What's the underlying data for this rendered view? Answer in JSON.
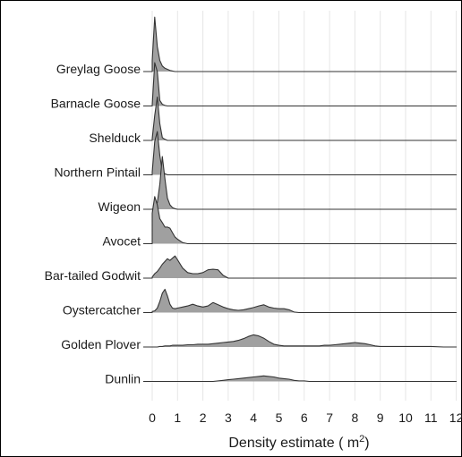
{
  "chart_data": {
    "type": "ridgeline",
    "xlabel": "Density estimate ( m²)",
    "xlabel_main": "Density estimate ( m",
    "xlabel_sup": "2",
    "xlabel_close": ")",
    "xlim": [
      -0.3,
      12
    ],
    "x_ticks": [
      0,
      1,
      2,
      3,
      4,
      5,
      6,
      7,
      8,
      9,
      10,
      11,
      12
    ],
    "grid": "vertical",
    "fill_color": "#a0a0a0",
    "line_color": "#333333",
    "grid_color": "#e6e6e6",
    "ridge_x": [
      0,
      0.1,
      0.2,
      0.3,
      0.4,
      0.5,
      0.6,
      0.7,
      0.8,
      0.9,
      1.0,
      1.2,
      1.4,
      1.6,
      1.8,
      2.0,
      2.2,
      2.4,
      2.6,
      2.8,
      3.0,
      3.2,
      3.4,
      3.6,
      3.8,
      4.0,
      4.2,
      4.4,
      4.6,
      4.8,
      5.0,
      5.2,
      5.4,
      5.6,
      5.8,
      6.0,
      6.2,
      6.4,
      6.6,
      6.8,
      7.0,
      7.2,
      7.4,
      7.6,
      7.8,
      8.0,
      8.2,
      8.4,
      8.6,
      8.8,
      9.0,
      9.5,
      10.0,
      10.5,
      11.0,
      11.5,
      12.0
    ],
    "series": [
      {
        "name": "Greylag Goose",
        "values": [
          0.2,
          0.98,
          0.45,
          0.2,
          0.1,
          0.06,
          0.04,
          0.02,
          0.01,
          0,
          0,
          0,
          0,
          0,
          0,
          0,
          0,
          0,
          0,
          0,
          0,
          0,
          0,
          0,
          0,
          0,
          0,
          0,
          0,
          0,
          0,
          0,
          0,
          0,
          0,
          0,
          0,
          0,
          0,
          0,
          0,
          0,
          0,
          0,
          0,
          0,
          0,
          0,
          0,
          0,
          0,
          0,
          0,
          0,
          0,
          0,
          0
        ]
      },
      {
        "name": "Barnacle Goose",
        "values": [
          0.02,
          0.78,
          0.62,
          0.1,
          0.03,
          0.01,
          0,
          0,
          0,
          0,
          0,
          0,
          0,
          0,
          0,
          0,
          0,
          0,
          0,
          0,
          0,
          0,
          0,
          0,
          0,
          0,
          0,
          0,
          0,
          0,
          0,
          0,
          0,
          0,
          0,
          0,
          0,
          0,
          0,
          0,
          0,
          0,
          0,
          0,
          0,
          0,
          0,
          0,
          0,
          0,
          0,
          0,
          0,
          0,
          0,
          0,
          0
        ]
      },
      {
        "name": "Shelduck",
        "values": [
          0.03,
          0.45,
          0.78,
          0.3,
          0.05,
          0.02,
          0,
          0,
          0,
          0,
          0,
          0,
          0,
          0,
          0,
          0,
          0,
          0,
          0,
          0,
          0,
          0,
          0,
          0,
          0,
          0,
          0,
          0,
          0,
          0,
          0,
          0,
          0,
          0,
          0,
          0,
          0,
          0,
          0,
          0,
          0,
          0,
          0,
          0,
          0,
          0,
          0,
          0,
          0,
          0,
          0,
          0,
          0,
          0,
          0,
          0,
          0
        ]
      },
      {
        "name": "Northern Pintail",
        "values": [
          0.05,
          0.6,
          0.78,
          0.35,
          0.06,
          0.02,
          0,
          0,
          0,
          0,
          0,
          0,
          0,
          0,
          0,
          0,
          0,
          0,
          0,
          0,
          0,
          0,
          0,
          0,
          0,
          0,
          0,
          0,
          0,
          0,
          0,
          0,
          0,
          0,
          0,
          0,
          0,
          0,
          0,
          0,
          0,
          0,
          0,
          0,
          0,
          0,
          0,
          0,
          0,
          0,
          0,
          0,
          0,
          0,
          0,
          0,
          0
        ]
      },
      {
        "name": "Wigeon",
        "values": [
          0,
          0.03,
          0.12,
          0.45,
          0.95,
          0.55,
          0.2,
          0.08,
          0.03,
          0.01,
          0,
          0,
          0,
          0,
          0,
          0,
          0,
          0,
          0,
          0,
          0,
          0,
          0,
          0,
          0,
          0,
          0,
          0,
          0,
          0,
          0,
          0,
          0,
          0,
          0,
          0,
          0,
          0,
          0,
          0,
          0,
          0,
          0,
          0,
          0,
          0,
          0,
          0,
          0,
          0,
          0,
          0,
          0,
          0,
          0,
          0,
          0
        ]
      },
      {
        "name": "Avocet",
        "values": [
          0.55,
          0.85,
          0.7,
          0.45,
          0.38,
          0.3,
          0.3,
          0.28,
          0.2,
          0.12,
          0.08,
          0.02,
          0,
          0,
          0,
          0,
          0,
          0,
          0,
          0,
          0,
          0,
          0,
          0,
          0,
          0,
          0,
          0,
          0,
          0,
          0,
          0,
          0,
          0,
          0,
          0,
          0,
          0,
          0,
          0,
          0,
          0,
          0,
          0,
          0,
          0,
          0,
          0,
          0,
          0,
          0,
          0,
          0,
          0,
          0,
          0,
          0
        ]
      },
      {
        "name": "Bar-tailed Godwit",
        "values": [
          0.02,
          0.08,
          0.12,
          0.18,
          0.25,
          0.3,
          0.35,
          0.32,
          0.36,
          0.4,
          0.33,
          0.18,
          0.1,
          0.08,
          0.08,
          0.1,
          0.15,
          0.16,
          0.15,
          0.05,
          0,
          0,
          0,
          0,
          0,
          0,
          0,
          0,
          0,
          0,
          0,
          0,
          0,
          0,
          0,
          0,
          0,
          0,
          0,
          0,
          0,
          0,
          0,
          0,
          0,
          0,
          0,
          0,
          0,
          0,
          0,
          0,
          0,
          0,
          0,
          0,
          0
        ]
      },
      {
        "name": "Oystercatcher",
        "values": [
          0.02,
          0.03,
          0.08,
          0.2,
          0.35,
          0.42,
          0.3,
          0.15,
          0.08,
          0.07,
          0.08,
          0.1,
          0.12,
          0.15,
          0.12,
          0.1,
          0.12,
          0.18,
          0.14,
          0.1,
          0.07,
          0.05,
          0.04,
          0.05,
          0.07,
          0.09,
          0.12,
          0.14,
          0.1,
          0.08,
          0.07,
          0.07,
          0.05,
          0.01,
          0,
          0,
          0,
          0,
          0,
          0,
          0,
          0,
          0,
          0,
          0,
          0,
          0,
          0,
          0,
          0,
          0,
          0,
          0,
          0,
          0,
          0,
          0
        ]
      },
      {
        "name": "Golden Plover",
        "values": [
          0,
          0,
          0,
          0.01,
          0.01,
          0.02,
          0.02,
          0.02,
          0.03,
          0.03,
          0.03,
          0.03,
          0.04,
          0.04,
          0.05,
          0.05,
          0.05,
          0.06,
          0.07,
          0.08,
          0.09,
          0.1,
          0.12,
          0.15,
          0.19,
          0.22,
          0.2,
          0.16,
          0.1,
          0.05,
          0.03,
          0.02,
          0.02,
          0.02,
          0.02,
          0.02,
          0.02,
          0.02,
          0.02,
          0.03,
          0.03,
          0.04,
          0.05,
          0.06,
          0.07,
          0.08,
          0.07,
          0.06,
          0.04,
          0.02,
          0.01,
          0.01,
          0.01,
          0.01,
          0.01,
          0,
          0
        ]
      },
      {
        "name": "Dunlin",
        "values": [
          0,
          0,
          0,
          0,
          0,
          0,
          0,
          0,
          0,
          0,
          0,
          0,
          0,
          0,
          0,
          0,
          0,
          0,
          0.01,
          0.02,
          0.03,
          0.04,
          0.05,
          0.06,
          0.07,
          0.08,
          0.09,
          0.1,
          0.09,
          0.08,
          0.06,
          0.05,
          0.04,
          0.02,
          0.01,
          0.01,
          0,
          0,
          0,
          0,
          0,
          0,
          0,
          0,
          0,
          0,
          0,
          0,
          0,
          0,
          0,
          0,
          0,
          0,
          0,
          0,
          0
        ]
      }
    ]
  }
}
